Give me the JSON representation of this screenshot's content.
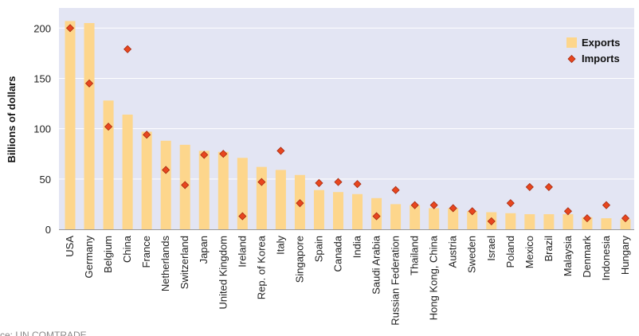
{
  "chart_data": {
    "type": "bar",
    "ylabel": "Billions of dollars",
    "ylim": [
      0,
      220
    ],
    "yticks": [
      0,
      50,
      100,
      150,
      200
    ],
    "grid": true,
    "legend_position": "top-right",
    "categories": [
      "USA",
      "Germany",
      "Belgium",
      "China",
      "France",
      "Netherlands",
      "Switzerland",
      "Japan",
      "United Kingdom",
      "Ireland",
      "Rep. of Korea",
      "Italy",
      "Singapore",
      "Spain",
      "Canada",
      "India",
      "Saudi Arabia",
      "Russian Federation",
      "Thailand",
      "Hong Kong, China",
      "Austria",
      "Sweden",
      "Israel",
      "Poland",
      "Mexico",
      "Brazil",
      "Malaysia",
      "Denmark",
      "Indonesia",
      "Hungary"
    ],
    "series": [
      {
        "name": "Exports",
        "type": "bar",
        "color": "#FDD68C",
        "values": [
          207,
          205,
          128,
          114,
          97,
          88,
          84,
          78,
          77,
          71,
          62,
          59,
          54,
          39,
          37,
          35,
          31,
          25,
          24,
          21,
          21,
          18,
          17,
          16,
          15,
          15,
          15,
          12,
          11,
          10
        ]
      },
      {
        "name": "Imports",
        "type": "marker",
        "color": "#E8461E",
        "values": [
          200,
          145,
          102,
          179,
          94,
          59,
          44,
          74,
          75,
          13,
          47,
          78,
          26,
          46,
          47,
          45,
          13,
          39,
          24,
          24,
          21,
          18,
          8,
          26,
          42,
          42,
          18,
          11,
          24,
          11
        ]
      }
    ],
    "source": "rce: UN COMTRADE"
  },
  "colors": {
    "plot_background": "#E3E5F3",
    "gridline": "#FFFFFF",
    "axis": "#9A9A9A",
    "marker_edge": "#A52A10"
  }
}
